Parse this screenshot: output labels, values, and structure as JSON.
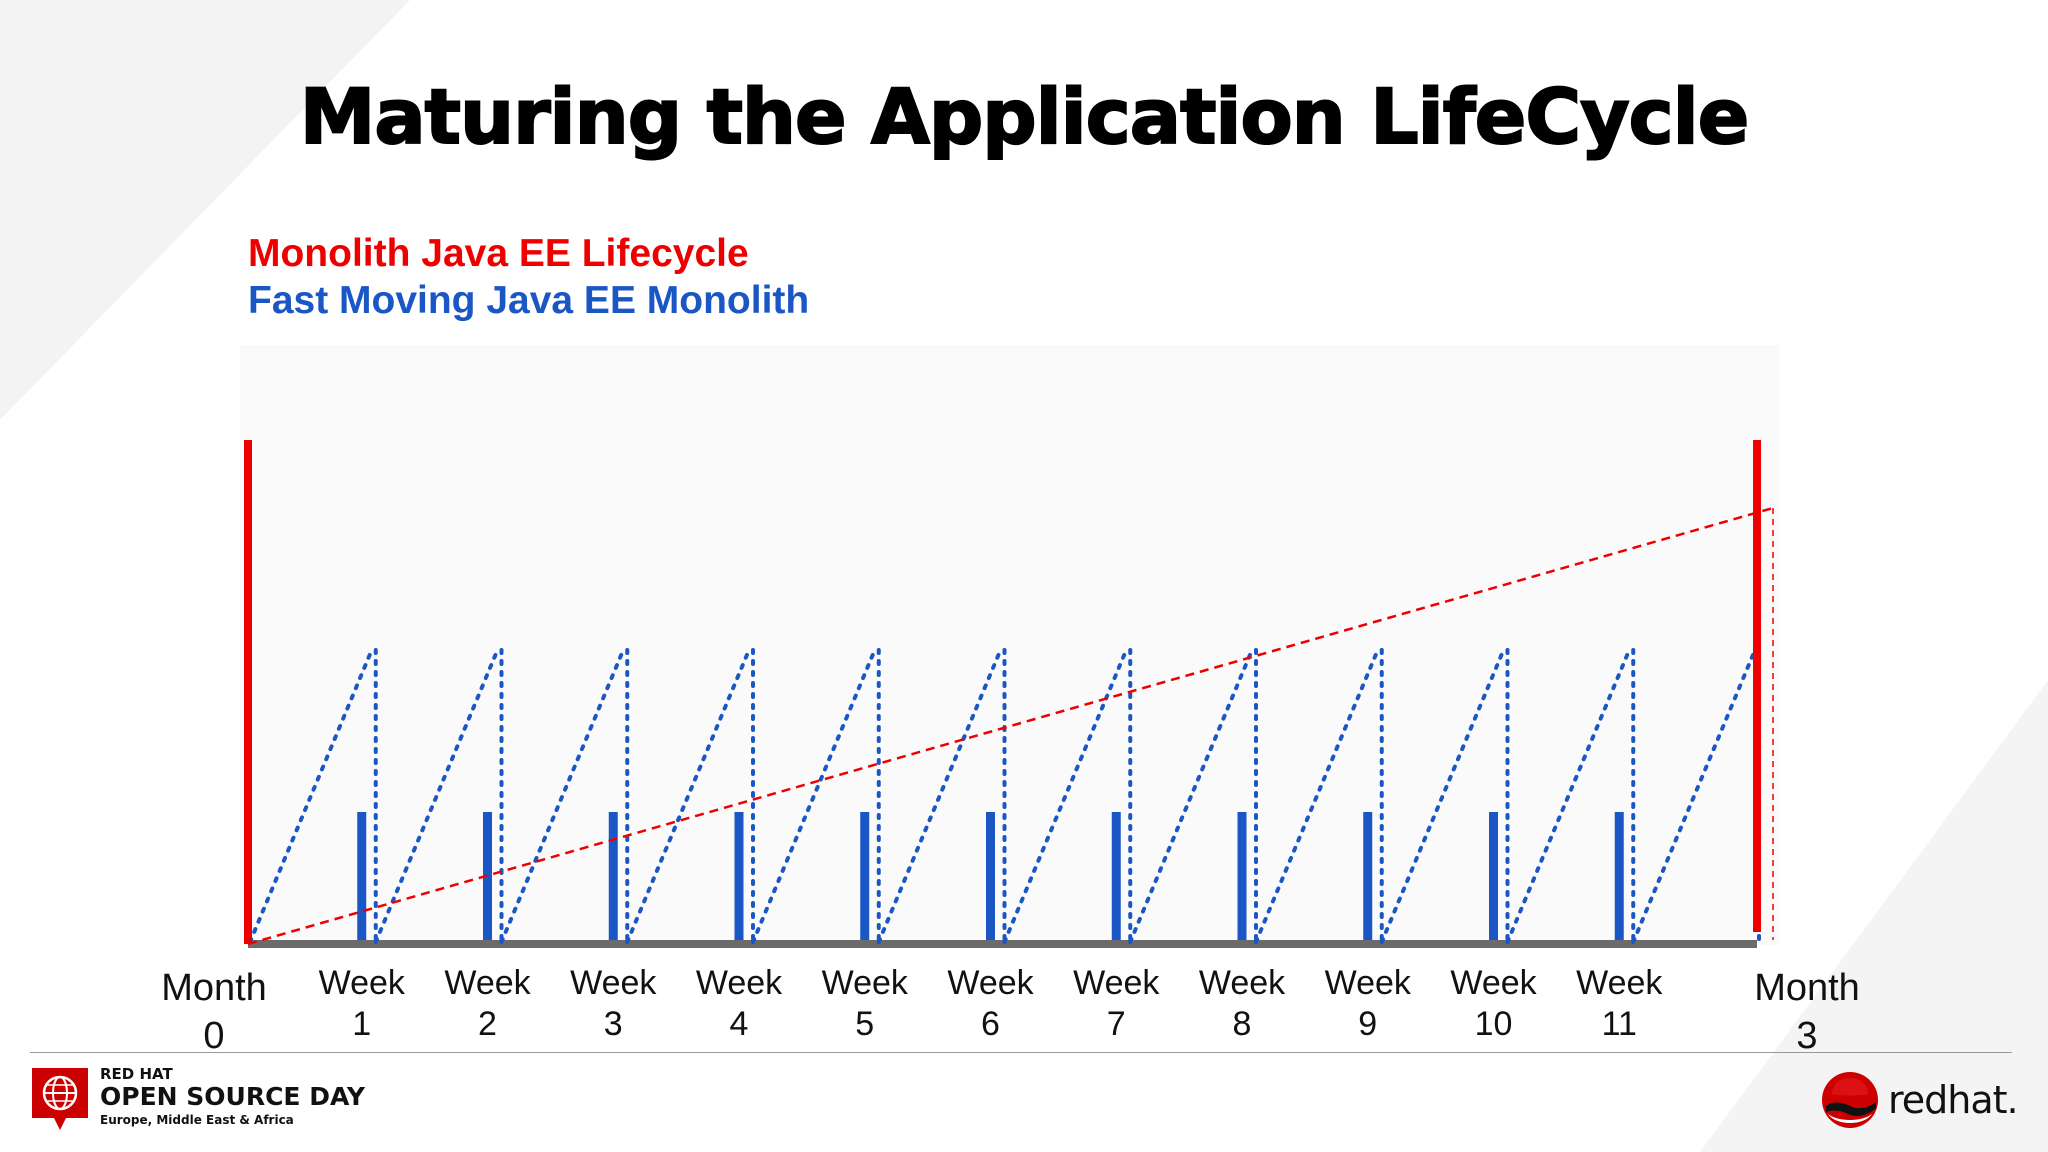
{
  "title": "Maturing the Application LifeCycle",
  "legend": {
    "red_label": "Monolith Java EE Lifecycle",
    "blue_label": "Fast Moving Java EE Monolith"
  },
  "timeline": {
    "start": {
      "line1": "Month",
      "line2": "0"
    },
    "end": {
      "line1": "Month",
      "line2": "3"
    },
    "weeks": [
      {
        "line1": "Week",
        "line2": "1"
      },
      {
        "line1": "Week",
        "line2": "2"
      },
      {
        "line1": "Week",
        "line2": "3"
      },
      {
        "line1": "Week",
        "line2": "4"
      },
      {
        "line1": "Week",
        "line2": "5"
      },
      {
        "line1": "Week",
        "line2": "6"
      },
      {
        "line1": "Week",
        "line2": "7"
      },
      {
        "line1": "Week",
        "line2": "8"
      },
      {
        "line1": "Week",
        "line2": "9"
      },
      {
        "line1": "Week",
        "line2": "10"
      },
      {
        "line1": "Week",
        "line2": "11"
      }
    ]
  },
  "colors": {
    "red": "#ee0000",
    "blue": "#1a56c4",
    "axis": "#6b6b6b"
  },
  "footer": {
    "brand": "RED HAT",
    "event": "OPEN SOURCE DAY",
    "region": "Europe, Middle East & Africa",
    "company": "redhat."
  }
}
